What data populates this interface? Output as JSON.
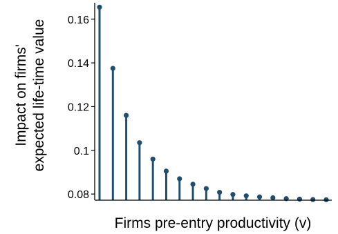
{
  "chart_data": {
    "type": "scatter",
    "style": "lollipop",
    "xlabel": "Firms pre-entry productivity (v)",
    "ylabel_lines": [
      "Impact on firms'",
      "expected life-time value"
    ],
    "yticks": [
      "0.08",
      "0.1",
      "0.12",
      "0.14",
      "0.16"
    ],
    "ytick_values": [
      0.08,
      0.1,
      0.12,
      0.14,
      0.16
    ],
    "ylim": [
      0.0772,
      0.1675
    ],
    "baseline": 0.0772,
    "grid": false,
    "color": "#1f4e6e",
    "x": [
      1,
      2,
      3,
      4,
      5,
      6,
      7,
      8,
      9,
      10,
      11,
      12,
      13,
      14,
      15,
      16,
      17,
      18
    ],
    "values": [
      0.1655,
      0.1375,
      0.116,
      0.1035,
      0.096,
      0.0905,
      0.087,
      0.0845,
      0.0825,
      0.0808,
      0.0798,
      0.0792,
      0.0787,
      0.0783,
      0.0779,
      0.0777,
      0.0775,
      0.0774
    ]
  }
}
